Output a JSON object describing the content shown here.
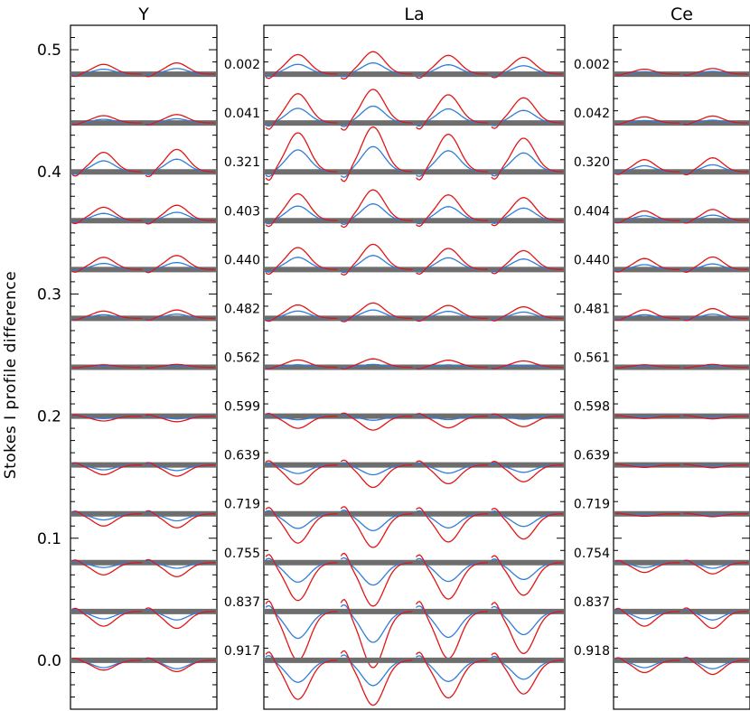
{
  "chart_data": {
    "type": "line",
    "ylabel": "Stokes I profile difference",
    "ylim": [
      -0.04,
      0.52
    ],
    "yticks": [
      "0.0",
      "0.1",
      "0.2",
      "0.3",
      "0.4",
      "0.5"
    ],
    "offsets": [
      0.48,
      0.44,
      0.4,
      0.36,
      0.32,
      0.28,
      0.24,
      0.2,
      0.16,
      0.12,
      0.08,
      0.04,
      0.0
    ],
    "colors": {
      "blue": "#2f7ddb",
      "red": "#e01616",
      "baseline": "#6e6e6e",
      "axes": "#000000"
    },
    "panels": [
      {
        "title": "Y",
        "lines": 2,
        "phases": [],
        "amp_blue": [
          0.004,
          0.003,
          0.009,
          0.006,
          0.005,
          0.003,
          0.001,
          -0.002,
          -0.004,
          -0.005,
          -0.004,
          -0.006,
          -0.006
        ],
        "amp_red": [
          0.008,
          0.006,
          0.016,
          0.011,
          0.01,
          0.006,
          0.002,
          -0.004,
          -0.008,
          -0.01,
          -0.01,
          -0.012,
          -0.008
        ]
      },
      {
        "title": "La",
        "lines": 4,
        "phases": [
          "0.002",
          "0.041",
          "0.321",
          "0.403",
          "0.440",
          "0.482",
          "0.562",
          "0.599",
          "0.639",
          "0.719",
          "0.755",
          "0.837",
          "0.917"
        ],
        "amp_blue": [
          0.008,
          0.012,
          0.018,
          0.012,
          0.01,
          0.006,
          0.002,
          -0.003,
          -0.007,
          -0.012,
          -0.016,
          -0.022,
          -0.018
        ],
        "amp_red": [
          0.016,
          0.024,
          0.032,
          0.022,
          0.018,
          0.011,
          0.006,
          -0.01,
          -0.016,
          -0.024,
          -0.031,
          -0.04,
          -0.032
        ]
      },
      {
        "title": "Ce",
        "lines": 2,
        "phases": [
          "0.002",
          "0.042",
          "0.320",
          "0.404",
          "0.440",
          "0.481",
          "0.561",
          "0.598",
          "0.639",
          "0.719",
          "0.754",
          "0.837",
          "0.918"
        ],
        "amp_blue": [
          0.002,
          0.002,
          0.005,
          0.004,
          0.004,
          0.003,
          0.001,
          -0.001,
          -0.001,
          -0.001,
          -0.004,
          -0.006,
          -0.006
        ],
        "amp_red": [
          0.004,
          0.005,
          0.01,
          0.008,
          0.009,
          0.007,
          0.002,
          -0.002,
          -0.002,
          -0.002,
          -0.008,
          -0.012,
          -0.01
        ]
      }
    ]
  }
}
